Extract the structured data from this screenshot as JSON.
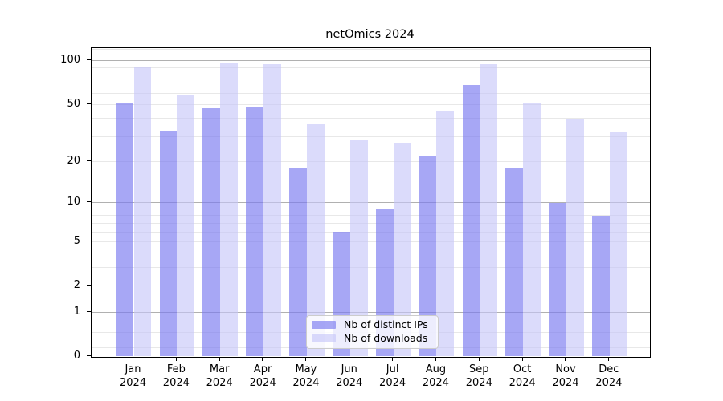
{
  "chart_data": {
    "type": "bar",
    "title": "netOmics 2024",
    "categories": [
      "Jan 2024",
      "Feb 2024",
      "Mar 2024",
      "Apr 2024",
      "May 2024",
      "Jun 2024",
      "Jul 2024",
      "Aug 2024",
      "Sep 2024",
      "Oct 2024",
      "Nov 2024",
      "Dec 2024"
    ],
    "series": [
      {
        "name": "Nb of distinct IPs",
        "color": "rgba(122,122,240,0.66)",
        "values": [
          51,
          33,
          47,
          48,
          18,
          6,
          9,
          22,
          68,
          18,
          10,
          8
        ]
      },
      {
        "name": "Nb of downloads",
        "color": "rgba(197,197,248,0.62)",
        "values": [
          90,
          58,
          97,
          95,
          37,
          28,
          27,
          45,
          95,
          51,
          40,
          32
        ]
      }
    ],
    "xlabel": "",
    "ylabel": "",
    "yscale": "log1p",
    "ylim": [
      0,
      122
    ],
    "y_ticks": [
      0,
      1,
      2,
      5,
      10,
      20,
      50,
      100
    ],
    "y_major_gridlines": [
      1,
      10,
      100
    ],
    "y_minor_gridlines": [
      0.15,
      0.45,
      2,
      3,
      4,
      5,
      6,
      7,
      8,
      9,
      20,
      30,
      40,
      50,
      60,
      70,
      80,
      90,
      110,
      120
    ],
    "grid": true,
    "legend_position": "lower center",
    "colors": {
      "major_grid": "#b0b0b0",
      "minor_grid": "#e8e8e8",
      "spine": "#000000",
      "background": "#ffffff"
    }
  }
}
